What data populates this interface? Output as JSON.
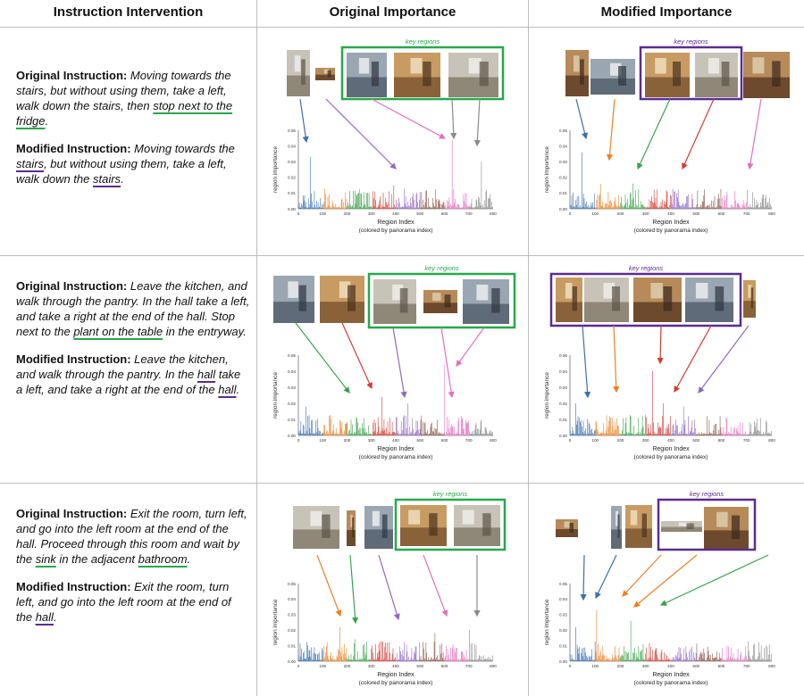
{
  "headers": {
    "col1": "Instruction Intervention",
    "col2": "Original Importance",
    "col3": "Modified Importance"
  },
  "common": {
    "key_regions_label": "key regions",
    "ylabel": "region importance",
    "xlabel": "Region Index",
    "xlabel_sub": "(colored by panorama index)",
    "orig_label": "Original Instruction:",
    "mod_label": "Modified Instruction:"
  },
  "rows": [
    {
      "orig": {
        "segments": [
          {
            "t": "Moving towards the stairs, but without using them, take a left, walk down the stairs, then ",
            "u": ""
          },
          {
            "t": "stop next to the fridge",
            "u": "g"
          },
          {
            "t": ".",
            "u": ""
          }
        ]
      },
      "mod": {
        "segments": [
          {
            "t": "Moving towards the ",
            "u": ""
          },
          {
            "t": "stairs",
            "u": "p"
          },
          {
            "t": ", but without using them, take a left, walk down the ",
            "u": ""
          },
          {
            "t": "stairs",
            "u": "p"
          },
          {
            "t": ".",
            "u": ""
          }
        ]
      }
    },
    {
      "orig": {
        "segments": [
          {
            "t": "Leave the kitchen, and walk through the pantry. In the hall take a left, and take a right at the end of the hall. Stop next to the ",
            "u": ""
          },
          {
            "t": "plant on the table",
            "u": "g"
          },
          {
            "t": " in the entryway.",
            "u": ""
          }
        ]
      },
      "mod": {
        "segments": [
          {
            "t": "Leave the kitchen, and walk through the pantry. In the ",
            "u": ""
          },
          {
            "t": "hall",
            "u": "p"
          },
          {
            "t": " take a left, and take a right at the end of the ",
            "u": ""
          },
          {
            "t": "hall",
            "u": "p"
          },
          {
            "t": ".",
            "u": ""
          }
        ]
      }
    },
    {
      "orig": {
        "segments": [
          {
            "t": "Exit the room, turn left, and go into the left room at the end of the hall.  Proceed through this room and wait by the ",
            "u": ""
          },
          {
            "t": "sink",
            "u": "g"
          },
          {
            "t": " in the adjacent ",
            "u": ""
          },
          {
            "t": "bathroom",
            "u": "g"
          },
          {
            "t": ".",
            "u": ""
          }
        ]
      },
      "mod": {
        "segments": [
          {
            "t": "Exit the room, turn left, and go into the left room at the end of the ",
            "u": ""
          },
          {
            "t": "hall",
            "u": "p"
          },
          {
            "t": ".",
            "u": ""
          }
        ]
      }
    }
  ],
  "chart_data": [
    {
      "type": "bar",
      "panel": "row1-original",
      "ylim": [
        0,
        0.05
      ],
      "xlim": [
        0,
        800
      ],
      "yticks": [
        "0.00",
        "0.01",
        "0.02",
        "0.03",
        "0.04",
        "0.05"
      ],
      "xticks": [
        "0",
        "100",
        "200",
        "300",
        "400",
        "500",
        "600",
        "700",
        "800"
      ],
      "peaks": [
        [
          50,
          0.033
        ],
        [
          630,
          0.044
        ],
        [
          750,
          0.03
        ],
        [
          390,
          0.015
        ]
      ]
    },
    {
      "type": "bar",
      "panel": "row1-modified",
      "ylim": [
        0,
        0.05
      ],
      "xlim": [
        0,
        800
      ],
      "yticks": [
        "0.00",
        "0.01",
        "0.02",
        "0.03",
        "0.04",
        "0.05"
      ],
      "xticks": [
        "0",
        "100",
        "200",
        "300",
        "400",
        "500",
        "600",
        "700",
        "800"
      ],
      "peaks": [
        [
          45,
          0.036
        ],
        [
          120,
          0.016
        ],
        [
          250,
          0.016
        ],
        [
          420,
          0.01
        ]
      ]
    },
    {
      "type": "bar",
      "panel": "row2-original",
      "ylim": [
        0,
        0.05
      ],
      "xlim": [
        0,
        800
      ],
      "yticks": [
        "0.00",
        "0.01",
        "0.02",
        "0.03",
        "0.04",
        "0.05"
      ],
      "xticks": [
        "0",
        "100",
        "200",
        "300",
        "400",
        "500",
        "600",
        "700",
        "800"
      ],
      "peaks": [
        [
          600,
          0.044
        ],
        [
          340,
          0.024
        ],
        [
          30,
          0.018
        ],
        [
          450,
          0.02
        ]
      ]
    },
    {
      "type": "bar",
      "panel": "row2-modified",
      "ylim": [
        0,
        0.05
      ],
      "xlim": [
        0,
        800
      ],
      "yticks": [
        "0.00",
        "0.01",
        "0.02",
        "0.03",
        "0.04",
        "0.05"
      ],
      "xticks": [
        "0",
        "100",
        "200",
        "300",
        "400",
        "500",
        "600",
        "700",
        "800"
      ],
      "peaks": [
        [
          325,
          0.04
        ],
        [
          20,
          0.02
        ],
        [
          370,
          0.02
        ],
        [
          450,
          0.018
        ]
      ]
    },
    {
      "type": "bar",
      "panel": "row3-original",
      "ylim": [
        0,
        0.05
      ],
      "xlim": [
        0,
        800
      ],
      "yticks": [
        "0.00",
        "0.01",
        "0.02",
        "0.03",
        "0.04",
        "0.05"
      ],
      "xticks": [
        "0",
        "100",
        "200",
        "300",
        "400",
        "500",
        "600",
        "700",
        "800"
      ],
      "peaks": [
        [
          170,
          0.022
        ],
        [
          700,
          0.02
        ],
        [
          560,
          0.018
        ],
        [
          230,
          0.014
        ]
      ]
    },
    {
      "type": "bar",
      "panel": "row3-modified",
      "ylim": [
        0,
        0.05
      ],
      "xlim": [
        0,
        800
      ],
      "yticks": [
        "0.00",
        "0.01",
        "0.02",
        "0.03",
        "0.04",
        "0.05"
      ],
      "xticks": [
        "0",
        "100",
        "200",
        "300",
        "400",
        "500",
        "600",
        "700",
        "800"
      ],
      "peaks": [
        [
          105,
          0.033
        ],
        [
          240,
          0.026
        ],
        [
          20,
          0.022
        ]
      ]
    }
  ],
  "colors": {
    "green": "#27a84a",
    "purple": "#5b2c91",
    "panorama": [
      "#3a6fb0",
      "#ef7f22",
      "#3aa24a",
      "#d63a31",
      "#9168c0",
      "#8c5a4a",
      "#e36fbb",
      "#8a8a8a"
    ]
  }
}
